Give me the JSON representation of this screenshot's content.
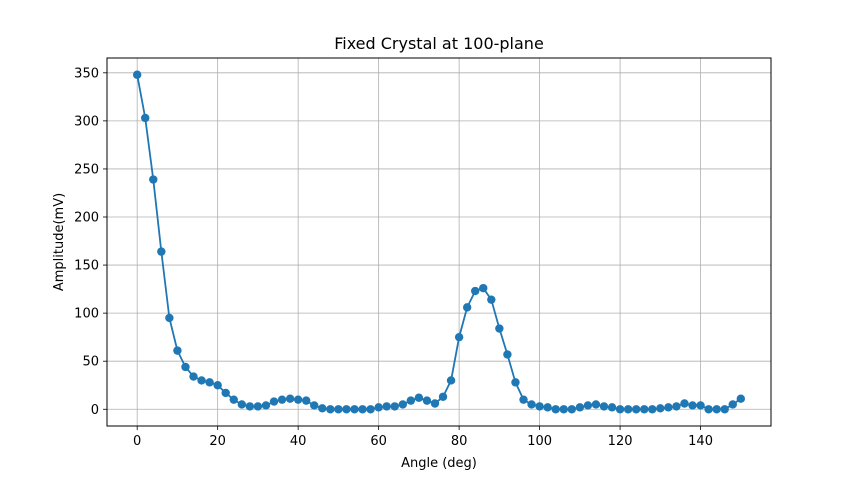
{
  "chart_data": {
    "type": "line",
    "title": "Fixed Crystal at 100-plane",
    "xlabel": "Angle (deg)",
    "ylabel": "Amplitude(mV)",
    "xlim": [
      -7.5,
      157.5
    ],
    "ylim": [
      -17.4,
      365.4
    ],
    "xticks": [
      0,
      20,
      40,
      60,
      80,
      100,
      120,
      140
    ],
    "yticks": [
      0,
      50,
      100,
      150,
      200,
      250,
      300,
      350
    ],
    "grid": true,
    "color": "#1f77b4",
    "marker": "circle",
    "series": [
      {
        "x": [
          0,
          2,
          4,
          6,
          8,
          10,
          12,
          14,
          16,
          18,
          20,
          22,
          24,
          26,
          28,
          30,
          32,
          34,
          36,
          38,
          40,
          42,
          44,
          46,
          48,
          50,
          52,
          54,
          56,
          58,
          60,
          62,
          64,
          66,
          68,
          70,
          72,
          74,
          76,
          78,
          80,
          82,
          84,
          86,
          88,
          90,
          92,
          94,
          96,
          98,
          100,
          102,
          104,
          106,
          108,
          110,
          112,
          114,
          116,
          118,
          120,
          122,
          124,
          126,
          128,
          130,
          132,
          134,
          136,
          138,
          140,
          142,
          144,
          146,
          148,
          150
        ],
        "y": [
          348,
          303,
          239,
          164,
          95,
          61,
          44,
          34,
          30,
          28,
          25,
          17,
          10,
          5,
          3,
          3,
          4,
          8,
          10,
          11,
          10,
          9,
          4,
          1,
          0,
          0,
          0,
          0,
          0,
          0,
          2,
          3,
          3,
          5,
          9,
          12,
          9,
          6,
          13,
          30,
          75,
          106,
          123,
          126,
          114,
          84,
          57,
          28,
          10,
          5,
          3,
          2,
          0,
          0,
          0,
          2,
          4,
          5,
          3,
          2,
          0,
          0,
          0,
          0,
          0,
          1,
          2,
          3,
          6,
          4,
          4,
          0,
          0,
          0,
          5,
          11
        ]
      }
    ]
  }
}
